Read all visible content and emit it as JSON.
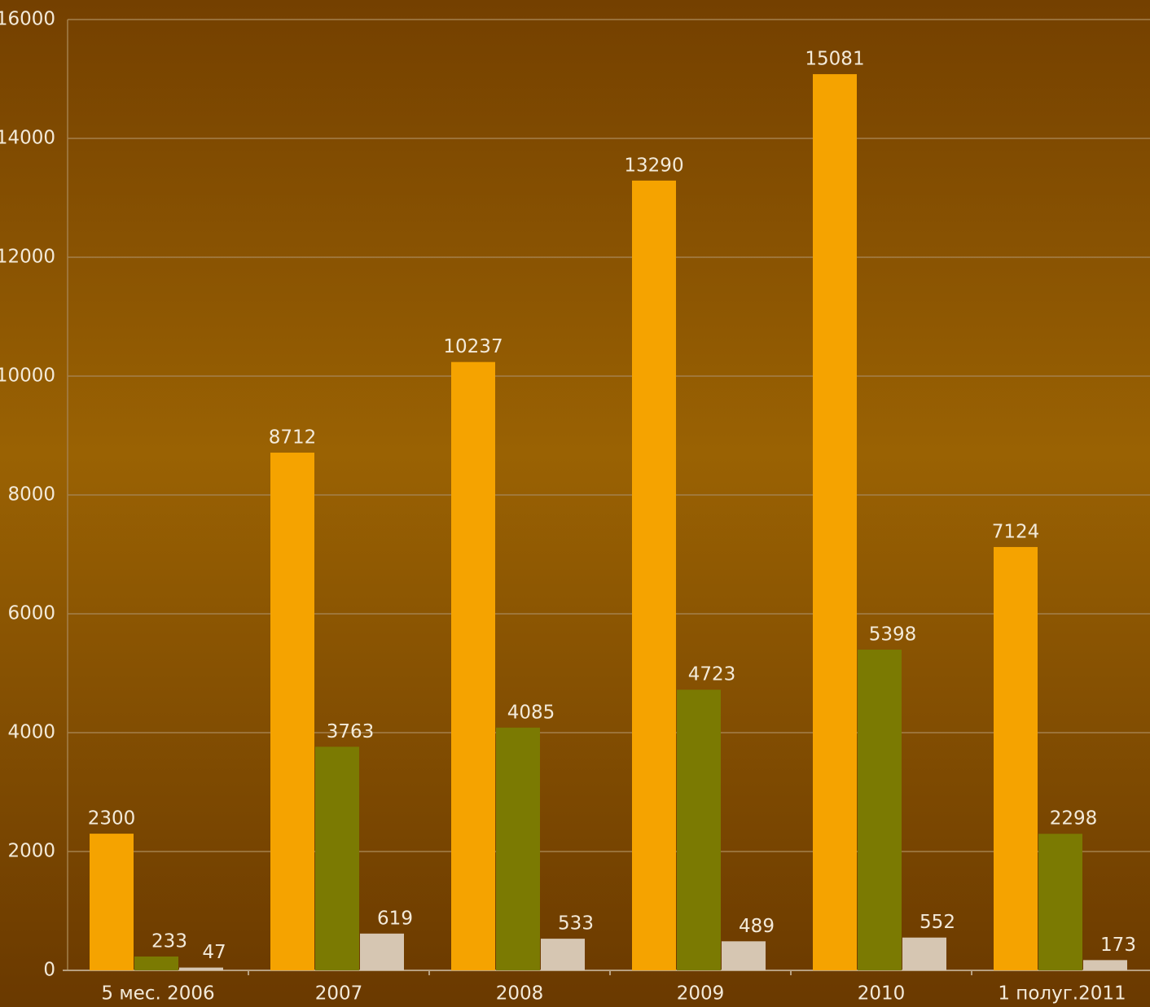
{
  "chart_data": {
    "type": "bar",
    "categories": [
      "5 мес. 2006",
      "2007",
      "2008",
      "2009",
      "2010",
      "1 полуг.2011"
    ],
    "series": [
      {
        "color": "#f5a300",
        "values": [
          2300,
          8712,
          10237,
          13290,
          15081,
          7124
        ]
      },
      {
        "color": "#7b7a02",
        "values": [
          233,
          3763,
          4085,
          4723,
          5398,
          2298
        ]
      },
      {
        "color": "#d6c6b2",
        "values": [
          47,
          619,
          533,
          489,
          552,
          173
        ]
      }
    ],
    "ylim": [
      0,
      16000
    ],
    "yticks": [
      0,
      2000,
      4000,
      6000,
      8000,
      10000,
      12000,
      14000,
      16000
    ],
    "grid": true
  }
}
